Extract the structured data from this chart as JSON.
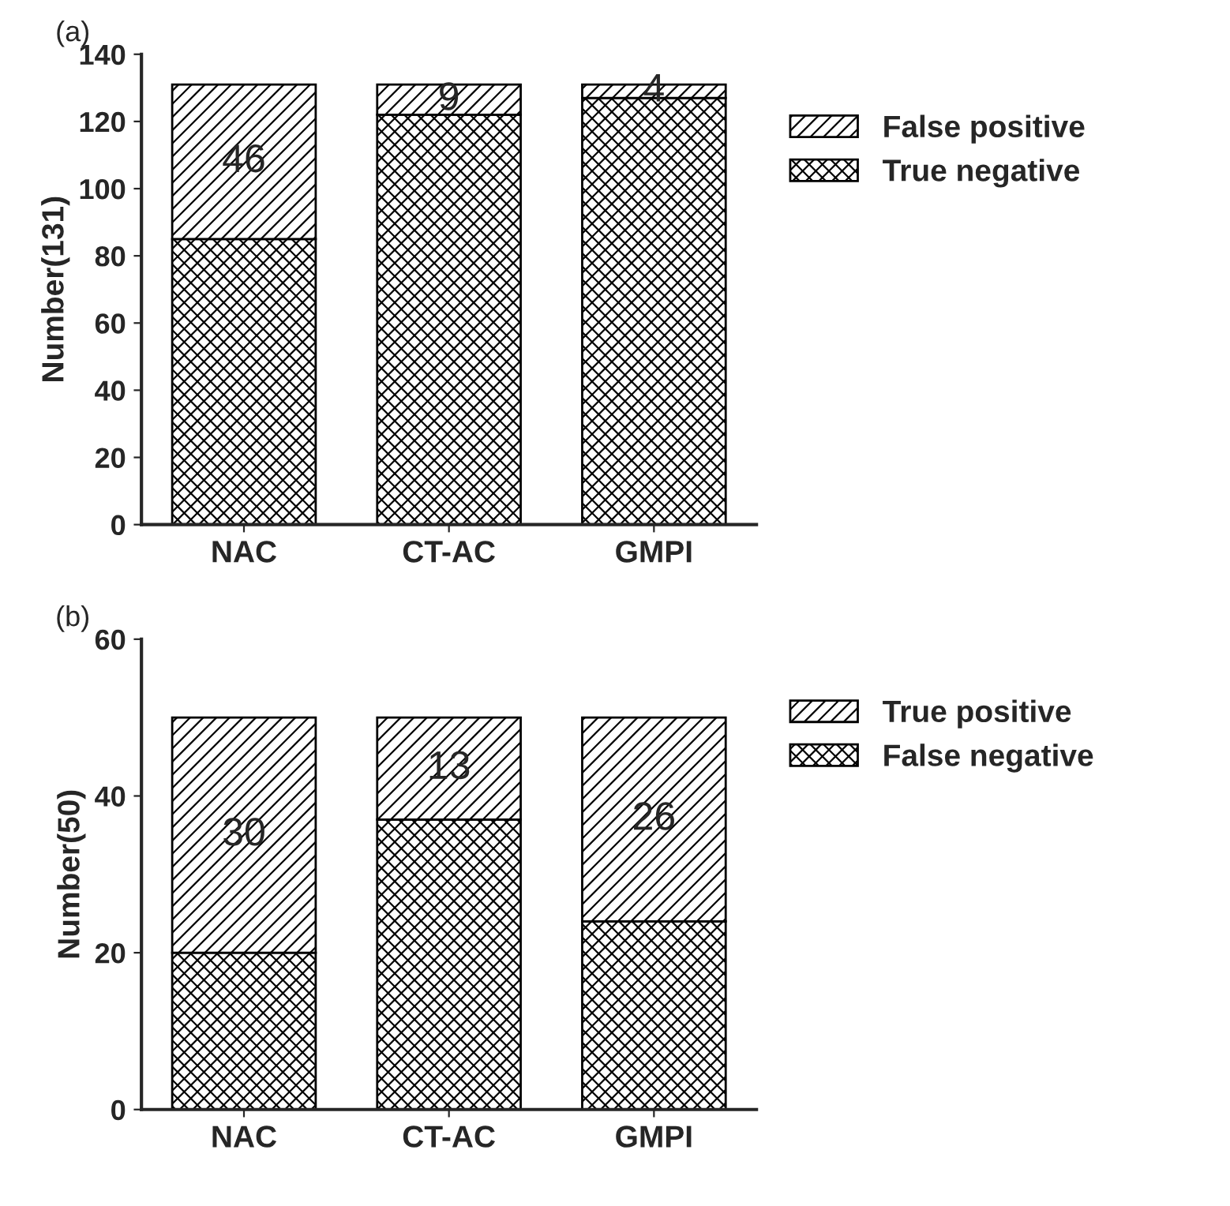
{
  "chart_data": [
    {
      "type": "bar",
      "title": "(a)",
      "ylabel": "Number(131)",
      "categories": [
        "NAC",
        "CT-AC",
        "GMPI"
      ],
      "stacked": true,
      "ylim": [
        0,
        140
      ],
      "yticks": [
        0,
        20,
        40,
        60,
        80,
        100,
        120,
        140
      ],
      "grid": false,
      "legend": "right",
      "series": [
        {
          "name": "True negative",
          "color": "#000000",
          "values": [
            85,
            122,
            127
          ]
        },
        {
          "name": "False positive",
          "color": "#000000",
          "values": [
            46,
            9,
            4
          ],
          "value_labels": [
            "46",
            "9",
            "4"
          ]
        }
      ]
    },
    {
      "type": "bar",
      "title": "(b)",
      "ylabel": "Number(50)",
      "categories": [
        "NAC",
        "CT-AC",
        "GMPI"
      ],
      "stacked": true,
      "ylim": [
        0,
        60
      ],
      "yticks": [
        0,
        20,
        40,
        60
      ],
      "grid": false,
      "legend": "right",
      "series": [
        {
          "name": "False negative",
          "color": "#000000",
          "values": [
            20,
            37,
            24
          ]
        },
        {
          "name": "True positive",
          "color": "#000000",
          "values": [
            30,
            13,
            26
          ],
          "value_labels": [
            "30",
            "13",
            "26"
          ]
        }
      ]
    }
  ]
}
